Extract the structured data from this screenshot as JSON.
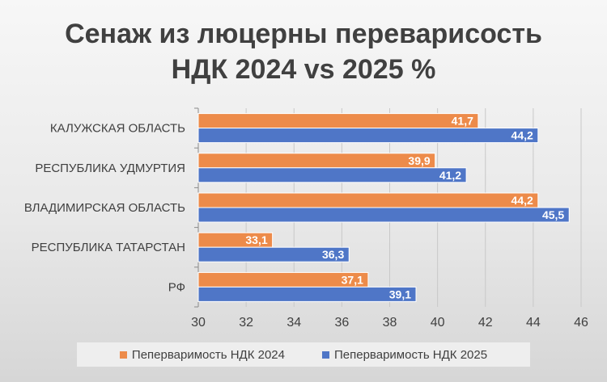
{
  "chart_data": {
    "type": "bar",
    "orientation": "horizontal",
    "title_lines": [
      "Сенаж из люцерны переварисость",
      "НДК 2024 vs 2025 %"
    ],
    "categories": [
      "КАЛУЖСКАЯ ОБЛАСТЬ",
      "РЕСПУБЛИКА УДМУРТИЯ",
      "ВЛАДИМИРСКАЯ ОБЛАСТЬ",
      "РЕСПУБЛИКА ТАТАРСТАН",
      "РФ"
    ],
    "series": [
      {
        "name": "Пеперваримость НДК 2024",
        "color": "#ed8b4a",
        "values": [
          41.7,
          39.9,
          44.2,
          33.1,
          37.1
        ],
        "labels": [
          "41,7",
          "39,9",
          "44,2",
          "33,1",
          "37,1"
        ]
      },
      {
        "name": "Пеперваримость НДК 2025",
        "color": "#4f76c7",
        "values": [
          44.2,
          41.2,
          45.5,
          36.3,
          39.1
        ],
        "labels": [
          "44,2",
          "41,2",
          "45,5",
          "36,3",
          "39,1"
        ]
      }
    ],
    "xlim": [
      30,
      46
    ],
    "xticks": [
      "30",
      "32",
      "34",
      "36",
      "38",
      "40",
      "42",
      "44",
      "46"
    ],
    "grid": true,
    "legend_position": "bottom"
  }
}
